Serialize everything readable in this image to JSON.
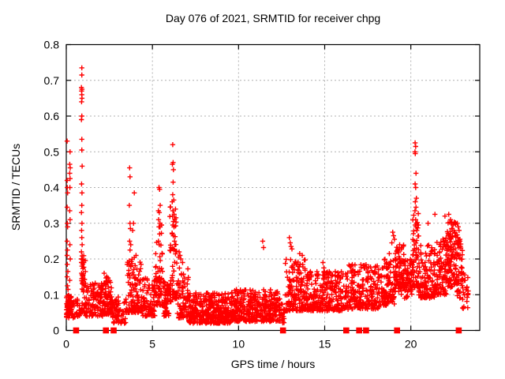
{
  "title": "Day 076 of 2021, SRMTID for receiver chpg",
  "chart_data": {
    "type": "scatter",
    "title": "Day 076 of 2021, SRMTID for receiver chpg",
    "xlabel": "GPS time / hours",
    "ylabel": "SRMTID / TECUs",
    "xlim": [
      0,
      24
    ],
    "ylim": [
      0,
      0.8
    ],
    "xticks": [
      0,
      5,
      10,
      15,
      20
    ],
    "yticks": [
      0,
      0.1,
      0.2,
      0.3,
      0.4,
      0.5,
      0.6,
      0.7,
      0.8
    ],
    "grid": true,
    "legend": null,
    "marker": "plus",
    "marker_color": "#ff0000",
    "grid_color": "#b0b0b0",
    "axis_color": "#000000",
    "series_name": "SRMTID",
    "baseline_square_marks_hours": [
      0.57,
      2.3,
      2.75,
      12.58,
      16.25,
      17.0,
      17.4,
      19.2,
      22.78
    ],
    "outlier_points": [
      [
        0.05,
        0.53
      ],
      [
        0.22,
        0.5
      ],
      [
        0.2,
        0.465
      ],
      [
        0.23,
        0.455
      ],
      [
        0.2,
        0.44
      ],
      [
        0.22,
        0.425
      ],
      [
        0.05,
        0.42
      ],
      [
        0.21,
        0.4
      ],
      [
        0.06,
        0.4
      ],
      [
        0.08,
        0.385
      ],
      [
        0.05,
        0.345
      ],
      [
        0.2,
        0.335
      ],
      [
        0.22,
        0.31
      ],
      [
        0.06,
        0.3
      ],
      [
        0.08,
        0.29
      ],
      [
        0.05,
        0.25
      ],
      [
        0.21,
        0.24
      ],
      [
        0.07,
        0.225
      ],
      [
        0.05,
        0.21
      ],
      [
        0.23,
        0.2
      ],
      [
        0.06,
        0.185
      ],
      [
        0.09,
        0.165
      ],
      [
        0.05,
        0.15
      ],
      [
        0.2,
        0.14
      ],
      [
        0.07,
        0.125
      ],
      [
        0.1,
        0.115
      ],
      [
        0.9,
        0.735
      ],
      [
        0.9,
        0.715
      ],
      [
        0.88,
        0.68
      ],
      [
        0.91,
        0.675
      ],
      [
        0.89,
        0.67
      ],
      [
        0.9,
        0.66
      ],
      [
        0.91,
        0.65
      ],
      [
        0.89,
        0.64
      ],
      [
        0.9,
        0.6
      ],
      [
        0.88,
        0.59
      ],
      [
        0.9,
        0.535
      ],
      [
        0.9,
        0.505
      ],
      [
        0.92,
        0.46
      ],
      [
        0.89,
        0.41
      ],
      [
        0.91,
        0.385
      ],
      [
        0.9,
        0.35
      ],
      [
        0.88,
        0.33
      ],
      [
        0.91,
        0.3
      ],
      [
        0.89,
        0.28
      ],
      [
        0.9,
        0.26
      ],
      [
        0.92,
        0.24
      ],
      [
        0.88,
        0.22
      ],
      [
        0.9,
        0.2
      ],
      [
        0.91,
        0.18
      ],
      [
        0.89,
        0.16
      ],
      [
        0.9,
        0.145
      ],
      [
        2.2,
        0.16
      ],
      [
        2.35,
        0.15
      ],
      [
        3.68,
        0.455
      ],
      [
        3.7,
        0.43
      ],
      [
        3.66,
        0.35
      ],
      [
        3.7,
        0.3
      ],
      [
        3.72,
        0.285
      ],
      [
        3.68,
        0.25
      ],
      [
        3.74,
        0.24
      ],
      [
        3.7,
        0.225
      ],
      [
        3.95,
        0.385
      ],
      [
        3.9,
        0.3
      ],
      [
        3.85,
        0.28
      ],
      [
        4.05,
        0.21
      ],
      [
        5.38,
        0.4
      ],
      [
        5.42,
        0.395
      ],
      [
        5.45,
        0.35
      ],
      [
        5.35,
        0.335
      ],
      [
        5.4,
        0.33
      ],
      [
        5.36,
        0.31
      ],
      [
        5.44,
        0.3
      ],
      [
        5.38,
        0.29
      ],
      [
        5.42,
        0.27
      ],
      [
        5.35,
        0.25
      ],
      [
        5.4,
        0.24
      ],
      [
        6.18,
        0.52
      ],
      [
        6.2,
        0.47
      ],
      [
        6.16,
        0.465
      ],
      [
        6.22,
        0.45
      ],
      [
        6.2,
        0.415
      ],
      [
        6.18,
        0.38
      ],
      [
        6.24,
        0.365
      ],
      [
        6.15,
        0.36
      ],
      [
        6.2,
        0.335
      ],
      [
        6.26,
        0.325
      ],
      [
        6.17,
        0.32
      ],
      [
        6.22,
        0.305
      ],
      [
        6.19,
        0.295
      ],
      [
        6.25,
        0.29
      ],
      [
        6.15,
        0.27
      ],
      [
        6.21,
        0.265
      ],
      [
        6.28,
        0.25
      ],
      [
        6.18,
        0.23
      ],
      [
        6.55,
        0.22
      ],
      [
        6.6,
        0.21
      ],
      [
        6.52,
        0.205
      ],
      [
        6.65,
        0.2
      ],
      [
        6.75,
        0.19
      ],
      [
        11.4,
        0.25
      ],
      [
        11.45,
        0.232
      ],
      [
        12.95,
        0.26
      ],
      [
        13.0,
        0.245
      ],
      [
        13.05,
        0.235
      ],
      [
        13.1,
        0.228
      ],
      [
        13.55,
        0.215
      ],
      [
        13.7,
        0.21
      ],
      [
        14.9,
        0.19
      ],
      [
        14.95,
        0.175
      ],
      [
        18.75,
        0.215
      ],
      [
        18.95,
        0.275
      ],
      [
        19.0,
        0.265
      ],
      [
        19.05,
        0.255
      ],
      [
        18.9,
        0.245
      ],
      [
        19.35,
        0.24
      ],
      [
        20.25,
        0.525
      ],
      [
        20.28,
        0.515
      ],
      [
        20.24,
        0.5
      ],
      [
        20.26,
        0.495
      ],
      [
        20.3,
        0.44
      ],
      [
        20.25,
        0.41
      ],
      [
        20.28,
        0.4
      ],
      [
        20.32,
        0.37
      ],
      [
        20.26,
        0.36
      ],
      [
        20.3,
        0.345
      ],
      [
        20.24,
        0.335
      ],
      [
        20.28,
        0.31
      ],
      [
        20.33,
        0.3
      ],
      [
        20.26,
        0.295
      ],
      [
        20.29,
        0.29
      ],
      [
        20.35,
        0.28
      ],
      [
        21.0,
        0.3
      ],
      [
        21.4,
        0.325
      ],
      [
        21.98,
        0.32
      ],
      [
        22.2,
        0.325
      ],
      [
        22.3,
        0.31
      ],
      [
        22.35,
        0.3
      ],
      [
        22.45,
        0.295
      ],
      [
        22.4,
        0.285
      ],
      [
        22.5,
        0.28
      ],
      [
        22.55,
        0.275
      ],
      [
        22.3,
        0.27
      ],
      [
        22.6,
        0.265
      ],
      [
        22.7,
        0.3
      ],
      [
        22.75,
        0.29
      ],
      [
        22.8,
        0.28
      ],
      [
        22.72,
        0.26
      ],
      [
        22.85,
        0.25
      ],
      [
        23.05,
        0.16
      ],
      [
        23.15,
        0.14
      ],
      [
        23.25,
        0.12
      ],
      [
        23.3,
        0.1
      ]
    ],
    "density_bands": [
      [
        0.0,
        0.32,
        60,
        0.035,
        0.1,
        1.2
      ],
      [
        0.32,
        0.85,
        28,
        0.035,
        0.09,
        1.2
      ],
      [
        0.85,
        1.12,
        50,
        0.05,
        0.22,
        1.5
      ],
      [
        1.12,
        2.1,
        100,
        0.04,
        0.135,
        1.6
      ],
      [
        2.1,
        2.65,
        80,
        0.045,
        0.15,
        1.5
      ],
      [
        2.65,
        3.45,
        65,
        0.02,
        0.095,
        1.3
      ],
      [
        3.45,
        4.35,
        110,
        0.05,
        0.22,
        1.9
      ],
      [
        4.35,
        5.15,
        85,
        0.04,
        0.15,
        1.5
      ],
      [
        5.15,
        5.6,
        60,
        0.07,
        0.32,
        1.9
      ],
      [
        5.6,
        6.0,
        50,
        0.04,
        0.14,
        1.4
      ],
      [
        6.0,
        6.45,
        60,
        0.08,
        0.35,
        1.9
      ],
      [
        6.45,
        7.1,
        80,
        0.035,
        0.18,
        1.7
      ],
      [
        7.1,
        9.6,
        330,
        0.02,
        0.105,
        1.4
      ],
      [
        9.6,
        12.4,
        360,
        0.025,
        0.115,
        1.4
      ],
      [
        12.4,
        12.7,
        20,
        0.02,
        0.075,
        1.2
      ],
      [
        12.7,
        13.9,
        150,
        0.055,
        0.2,
        1.6
      ],
      [
        13.9,
        16.4,
        280,
        0.055,
        0.165,
        1.5
      ],
      [
        16.4,
        18.3,
        210,
        0.06,
        0.185,
        1.5
      ],
      [
        18.3,
        19.05,
        95,
        0.07,
        0.2,
        1.4
      ],
      [
        19.05,
        19.6,
        90,
        0.1,
        0.24,
        1.2
      ],
      [
        19.6,
        20.1,
        60,
        0.09,
        0.2,
        1.3
      ],
      [
        20.1,
        20.45,
        50,
        0.12,
        0.33,
        1.6
      ],
      [
        20.45,
        21.5,
        120,
        0.09,
        0.24,
        1.4
      ],
      [
        21.5,
        22.1,
        90,
        0.1,
        0.26,
        1.4
      ],
      [
        22.1,
        22.65,
        95,
        0.12,
        0.305,
        1.3
      ],
      [
        22.65,
        23.0,
        50,
        0.09,
        0.27,
        1.3
      ],
      [
        23.0,
        23.35,
        20,
        0.06,
        0.16,
        1.2
      ]
    ]
  }
}
